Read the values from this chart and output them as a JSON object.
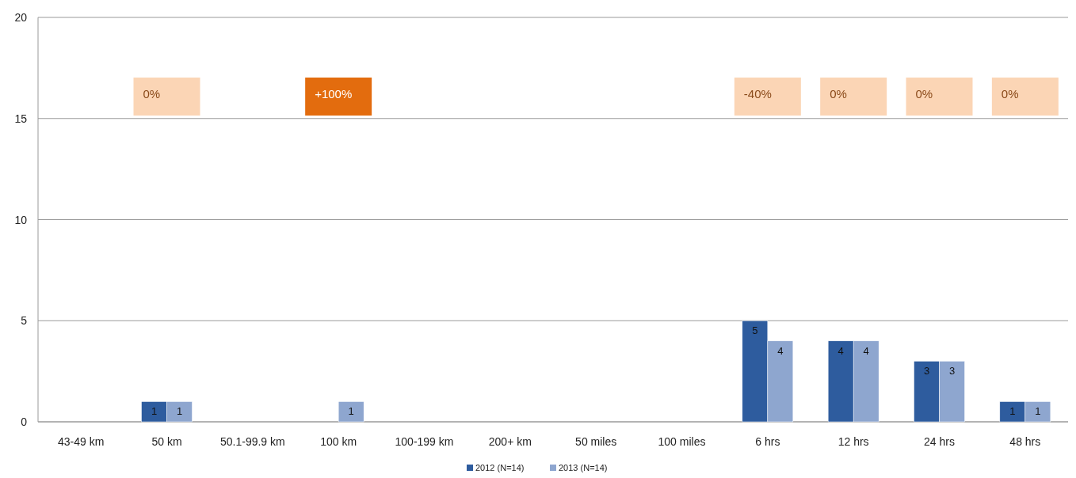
{
  "chart_data": {
    "type": "bar",
    "categories": [
      "43-49 km",
      "50 km",
      "50.1-99.9 km",
      "100 km",
      "100-199 km",
      "200+ km",
      "50 miles",
      "100 miles",
      "6 hrs",
      "12 hrs",
      "24 hrs",
      "48 hrs"
    ],
    "series": [
      {
        "name": "2012 (N=14)",
        "color": "#2e5c9e",
        "values": [
          0,
          1,
          0,
          0,
          0,
          0,
          0,
          0,
          5,
          4,
          3,
          1
        ],
        "value_labels": [
          null,
          "1",
          null,
          null,
          null,
          null,
          null,
          null,
          "5",
          "4",
          "3",
          "1"
        ]
      },
      {
        "name": "2013 (N=14)",
        "color": "#8ea6cf",
        "values": [
          0,
          1,
          0,
          1,
          0,
          0,
          0,
          0,
          4,
          4,
          3,
          1
        ],
        "value_labels": [
          null,
          "1",
          null,
          "1",
          null,
          null,
          null,
          null,
          "4",
          "4",
          "3",
          "1"
        ]
      }
    ],
    "ylim": [
      0,
      20
    ],
    "yticks": [
      0,
      5,
      10,
      15,
      20
    ],
    "grid": "y",
    "legend": "bottom",
    "annotations": [
      "0%",
      "+100%",
      "-40%",
      "0%",
      "0%",
      "0%"
    ]
  }
}
